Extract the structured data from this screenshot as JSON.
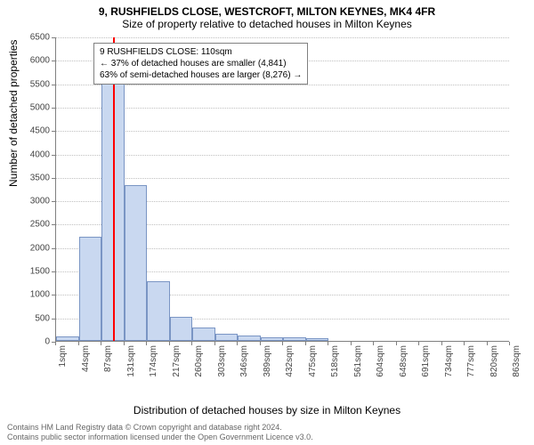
{
  "title_main": "9, RUSHFIELDS CLOSE, WESTCROFT, MILTON KEYNES, MK4 4FR",
  "title_sub": "Size of property relative to detached houses in Milton Keynes",
  "y_label": "Number of detached properties",
  "x_label": "Distribution of detached houses by size in Milton Keynes",
  "chart": {
    "type": "histogram",
    "ylim": [
      0,
      6500
    ],
    "yticks": [
      0,
      500,
      1000,
      1500,
      2000,
      2500,
      3000,
      3500,
      4000,
      4500,
      5000,
      5500,
      6000,
      6500
    ],
    "xtick_labels": [
      "1sqm",
      "44sqm",
      "87sqm",
      "131sqm",
      "174sqm",
      "217sqm",
      "260sqm",
      "303sqm",
      "346sqm",
      "389sqm",
      "432sqm",
      "475sqm",
      "518sqm",
      "561sqm",
      "604sqm",
      "648sqm",
      "691sqm",
      "734sqm",
      "777sqm",
      "820sqm",
      "863sqm"
    ],
    "bar_values": [
      100,
      2220,
      5550,
      3320,
      1270,
      520,
      290,
      150,
      120,
      80,
      80,
      50,
      0,
      0,
      0,
      0,
      0,
      0,
      0,
      0
    ],
    "bar_fill": "#c9d8f0",
    "bar_border": "#7a95c4",
    "marker_line_color": "#ff0000",
    "marker_xtick_index": 2.52,
    "grid_color": "#c0c0c0",
    "axis_color": "#808080",
    "background_color": "#ffffff"
  },
  "annotation": {
    "line1": "9 RUSHFIELDS CLOSE: 110sqm",
    "line2": "← 37% of detached houses are smaller (4,841)",
    "line3": "63% of semi-detached houses are larger (8,276) →"
  },
  "footer": {
    "line1": "Contains HM Land Registry data © Crown copyright and database right 2024.",
    "line2": "Contains public sector information licensed under the Open Government Licence v3.0."
  }
}
